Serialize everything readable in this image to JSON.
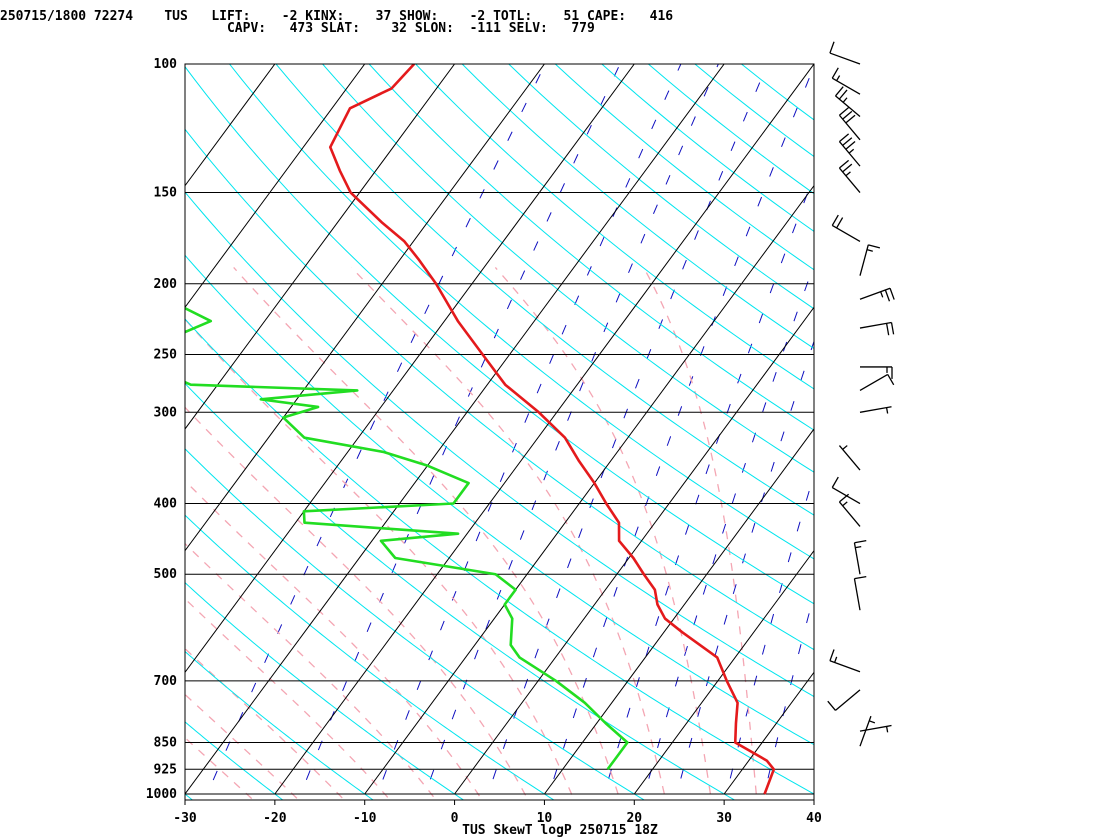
{
  "header": {
    "line1": "250715/1800 72274    TUS   LIFT:    -2 KINX:    37 SHOW:    -2 TOTL:    51 CAPE:   416",
    "line2": "                             CAPV:   473 SLAT:    32 SLON:  -111 SELV:   779"
  },
  "chart_data": {
    "type": "line",
    "subtype": "skew-T log-P sounding",
    "title": "TUS SkewT logP 250715 18Z",
    "xlabel": "",
    "ylabel": "",
    "x_ticks": [
      "-30",
      "-20",
      "-10",
      "0",
      "10",
      "20",
      "30",
      "40"
    ],
    "x_tick_values": [
      -30,
      -20,
      -10,
      0,
      10,
      20,
      30,
      40
    ],
    "y_ticks": [
      "100",
      "150",
      "200",
      "250",
      "300",
      "400",
      "500",
      "700",
      "850",
      "925",
      "1000"
    ],
    "y_tick_values": [
      100,
      150,
      200,
      250,
      300,
      400,
      500,
      700,
      850,
      925,
      1000
    ],
    "xlim": [
      -30,
      40
    ],
    "ylim": [
      1000,
      100
    ],
    "y_scale": "log",
    "skew_deg_per_decade": 60,
    "series": [
      {
        "color": "#e41a1c",
        "points": [
          [
            1000,
            34.5
          ],
          [
            925,
            33.5
          ],
          [
            900,
            32
          ],
          [
            850,
            27
          ],
          [
            800,
            25.5
          ],
          [
            750,
            24
          ],
          [
            700,
            21
          ],
          [
            650,
            18
          ],
          [
            600,
            12
          ],
          [
            575,
            9
          ],
          [
            550,
            7
          ],
          [
            525,
            5.5
          ],
          [
            500,
            3
          ],
          [
            475,
            0.5
          ],
          [
            450,
            -2.5
          ],
          [
            425,
            -4
          ],
          [
            400,
            -7
          ],
          [
            375,
            -10
          ],
          [
            350,
            -13.5
          ],
          [
            325,
            -17
          ],
          [
            300,
            -22
          ],
          [
            275,
            -28
          ],
          [
            250,
            -33
          ],
          [
            225,
            -38.5
          ],
          [
            200,
            -44
          ],
          [
            185,
            -48
          ],
          [
            175,
            -51
          ],
          [
            165,
            -55
          ],
          [
            150,
            -61
          ],
          [
            140,
            -64
          ],
          [
            130,
            -67
          ],
          [
            115,
            -68
          ],
          [
            108,
            -65
          ],
          [
            100,
            -64.5
          ]
        ]
      },
      {
        "color": "#22dd22",
        "points": [
          [
            925,
            15
          ],
          [
            900,
            15
          ],
          [
            850,
            15
          ],
          [
            800,
            11
          ],
          [
            750,
            7
          ],
          [
            700,
            2
          ],
          [
            650,
            -4
          ],
          [
            625,
            -6
          ],
          [
            575,
            -8
          ],
          [
            550,
            -10
          ],
          [
            525,
            -10
          ],
          [
            500,
            -13.5
          ],
          [
            475,
            -26
          ],
          [
            450,
            -29
          ],
          [
            440,
            -21
          ],
          [
            425,
            -39
          ],
          [
            410,
            -40
          ],
          [
            400,
            -24
          ],
          [
            375,
            -24
          ],
          [
            355,
            -30
          ],
          [
            340,
            -36
          ],
          [
            325,
            -46
          ],
          [
            305,
            -50
          ],
          [
            295,
            -47
          ],
          [
            288,
            -54
          ],
          [
            280,
            -44
          ],
          [
            275,
            -63
          ],
          [
            260,
            -69
          ],
          [
            250,
            -72
          ],
          [
            225,
            -66
          ],
          [
            205,
            -75
          ],
          [
            175,
            -82
          ],
          [
            165,
            -85
          ],
          [
            155,
            -86
          ],
          [
            150,
            -89
          ],
          [
            135,
            -94
          ],
          [
            120,
            -98
          ],
          [
            110,
            -103
          ],
          [
            100,
            -109
          ]
        ]
      }
    ],
    "wind_barbs": [
      {
        "p": 100,
        "dir": 290,
        "spd": 10
      },
      {
        "p": 110,
        "dir": 300,
        "spd": 15
      },
      {
        "p": 118,
        "dir": 310,
        "spd": 25
      },
      {
        "p": 127,
        "dir": 320,
        "spd": 30
      },
      {
        "p": 138,
        "dir": 320,
        "spd": 35
      },
      {
        "p": 150,
        "dir": 320,
        "spd": 25
      },
      {
        "p": 175,
        "dir": 300,
        "spd": 20
      },
      {
        "p": 195,
        "dir": 15,
        "spd": 15
      },
      {
        "p": 210,
        "dir": 70,
        "spd": 25
      },
      {
        "p": 230,
        "dir": 80,
        "spd": 20
      },
      {
        "p": 260,
        "dir": 90,
        "spd": 15
      },
      {
        "p": 280,
        "dir": 60,
        "spd": 10
      },
      {
        "p": 300,
        "dir": 80,
        "spd": 5
      },
      {
        "p": 360,
        "dir": 320,
        "spd": 5
      },
      {
        "p": 400,
        "dir": 300,
        "spd": 10
      },
      {
        "p": 430,
        "dir": 320,
        "spd": 15
      },
      {
        "p": 500,
        "dir": 350,
        "spd": 15
      },
      {
        "p": 560,
        "dir": 350,
        "spd": 10
      },
      {
        "p": 680,
        "dir": 290,
        "spd": 15
      },
      {
        "p": 720,
        "dir": 230,
        "spd": 10
      },
      {
        "p": 820,
        "dir": 80,
        "spd": 5
      },
      {
        "p": 860,
        "dir": 20,
        "spd": 5
      }
    ],
    "colors": {
      "isobar": "#000000",
      "isotherm": "#000000",
      "dry_adiabat": "#00e5ee",
      "moist_adiabat": "#f4a6b3",
      "mixing_ratio": "#1010c0",
      "wind_barb": "#000000"
    }
  }
}
